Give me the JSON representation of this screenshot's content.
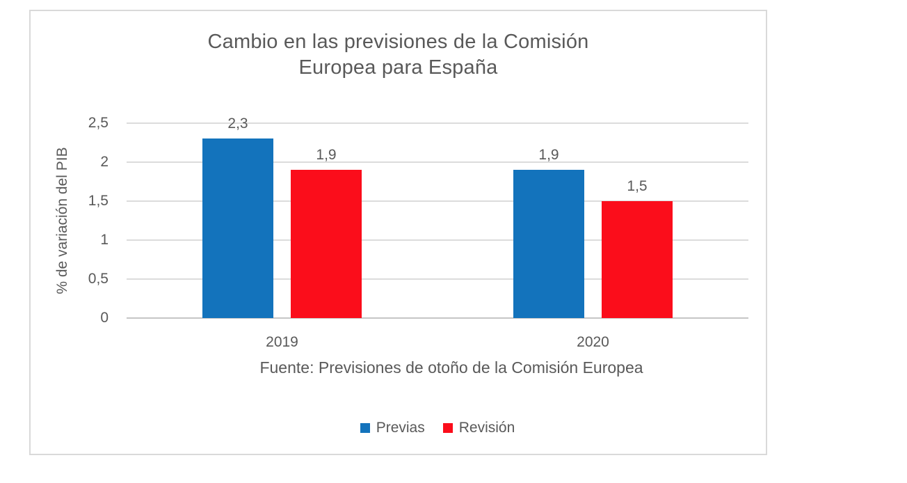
{
  "chart_data": {
    "type": "bar",
    "title": "Cambio en las previsiones de la Comisión Europea para España",
    "title_lines": [
      "Cambio en las previsiones de la Comisión",
      "Europea para España"
    ],
    "categories": [
      "2019",
      "2020"
    ],
    "series": [
      {
        "name": "Previas",
        "color": "#1373bc",
        "values": [
          2.3,
          1.9
        ],
        "value_labels": [
          "2,3",
          "1,9"
        ]
      },
      {
        "name": "Revisión",
        "color": "#fb0d1b",
        "values": [
          1.9,
          1.5
        ],
        "value_labels": [
          "1,9",
          "1,5"
        ]
      }
    ],
    "xlabel": "",
    "ylabel": "% de variación del PIB",
    "ylim": [
      0,
      2.5
    ],
    "ytick_step": 0.5,
    "ytick_labels": [
      "0",
      "0,5",
      "1",
      "1,5",
      "2",
      "2,5"
    ],
    "grid": true,
    "legend_position": "bottom-center",
    "source_note": "Fuente: Previsiones de otoño de la Comisión Europea"
  },
  "colors": {
    "text": "#595959",
    "gridline": "#dcdcdc",
    "axis_line": "#c6c6c6",
    "chart_border": "#d9d9d9",
    "background": "#ffffff"
  }
}
